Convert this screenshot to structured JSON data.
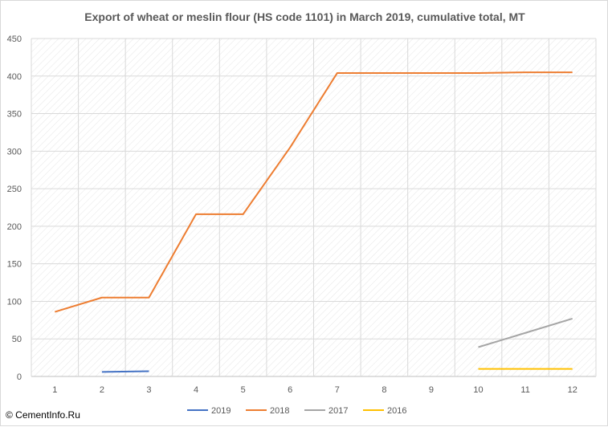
{
  "watermark": "© CementInfo.Ru",
  "chart_data": {
    "type": "line",
    "title": "Export of wheat or meslin flour (HS code 1101) in March 2019, cumulative total, MT",
    "xlabel": "",
    "ylabel": "",
    "categories": [
      "1",
      "2",
      "3",
      "4",
      "5",
      "6",
      "7",
      "8",
      "9",
      "10",
      "11",
      "12"
    ],
    "ylim": [
      0,
      450
    ],
    "yticks": [
      0,
      50,
      100,
      150,
      200,
      250,
      300,
      350,
      400,
      450
    ],
    "grid": true,
    "legend_position": "bottom",
    "series": [
      {
        "name": "2019",
        "color": "#4472c4",
        "values": [
          null,
          6,
          7,
          null,
          null,
          null,
          null,
          null,
          null,
          null,
          null,
          null
        ]
      },
      {
        "name": "2018",
        "color": "#ed7d31",
        "values": [
          86,
          105,
          105,
          216,
          216,
          305,
          404,
          404,
          404,
          404,
          405,
          405
        ]
      },
      {
        "name": "2017",
        "color": "#a5a5a5",
        "values": [
          null,
          null,
          null,
          null,
          null,
          null,
          null,
          null,
          null,
          39,
          58,
          77
        ]
      },
      {
        "name": "2016",
        "color": "#ffc000",
        "values": [
          null,
          null,
          null,
          null,
          null,
          null,
          null,
          null,
          null,
          10,
          10,
          10
        ]
      }
    ]
  }
}
